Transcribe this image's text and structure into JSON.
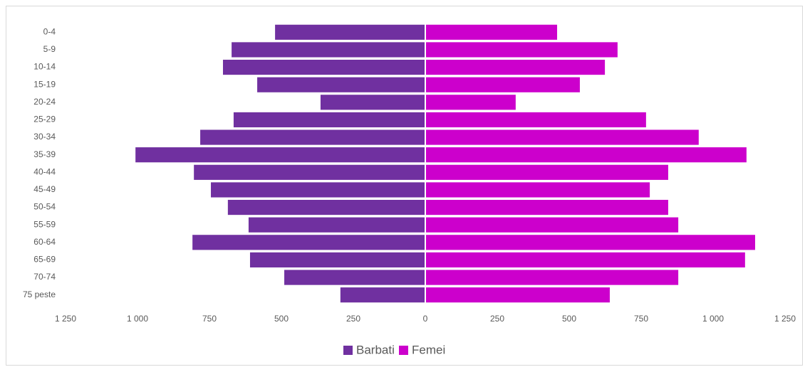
{
  "chart_data": {
    "type": "bar",
    "orientation": "horizontal",
    "stacked": true,
    "categories": [
      "0-4",
      "5-9",
      "10-14",
      "15-19",
      "20-24",
      "25-29",
      "30-34",
      "35-39",
      "40-44",
      "45-49",
      "50-54",
      "55-59",
      "60-64",
      "65-69",
      "70-74",
      "75 peste"
    ],
    "series": [
      {
        "name": "Barbati",
        "color": "#7030a0",
        "values": [
          -522,
          -673,
          -703,
          -584,
          -364,
          -666,
          -782,
          -1007,
          -804,
          -745,
          -686,
          -614,
          -809,
          -609,
          -490,
          -295
        ]
      },
      {
        "name": "Femei",
        "color": "#cc00cc",
        "values": [
          458,
          668,
          624,
          537,
          314,
          767,
          950,
          1116,
          844,
          780,
          844,
          879,
          1146,
          1111,
          879,
          641
        ]
      }
    ],
    "xlim": [
      -1250,
      1250
    ],
    "xticks": [
      {
        "value": -1250,
        "label": "1 250"
      },
      {
        "value": -1000,
        "label": "1 000"
      },
      {
        "value": -750,
        "label": "750"
      },
      {
        "value": -500,
        "label": "500"
      },
      {
        "value": -250,
        "label": "250"
      },
      0,
      250,
      500,
      750,
      {
        "value": 1000,
        "label": "1 000"
      },
      {
        "value": 1250,
        "label": "1 250"
      }
    ],
    "legend": "bottom"
  }
}
